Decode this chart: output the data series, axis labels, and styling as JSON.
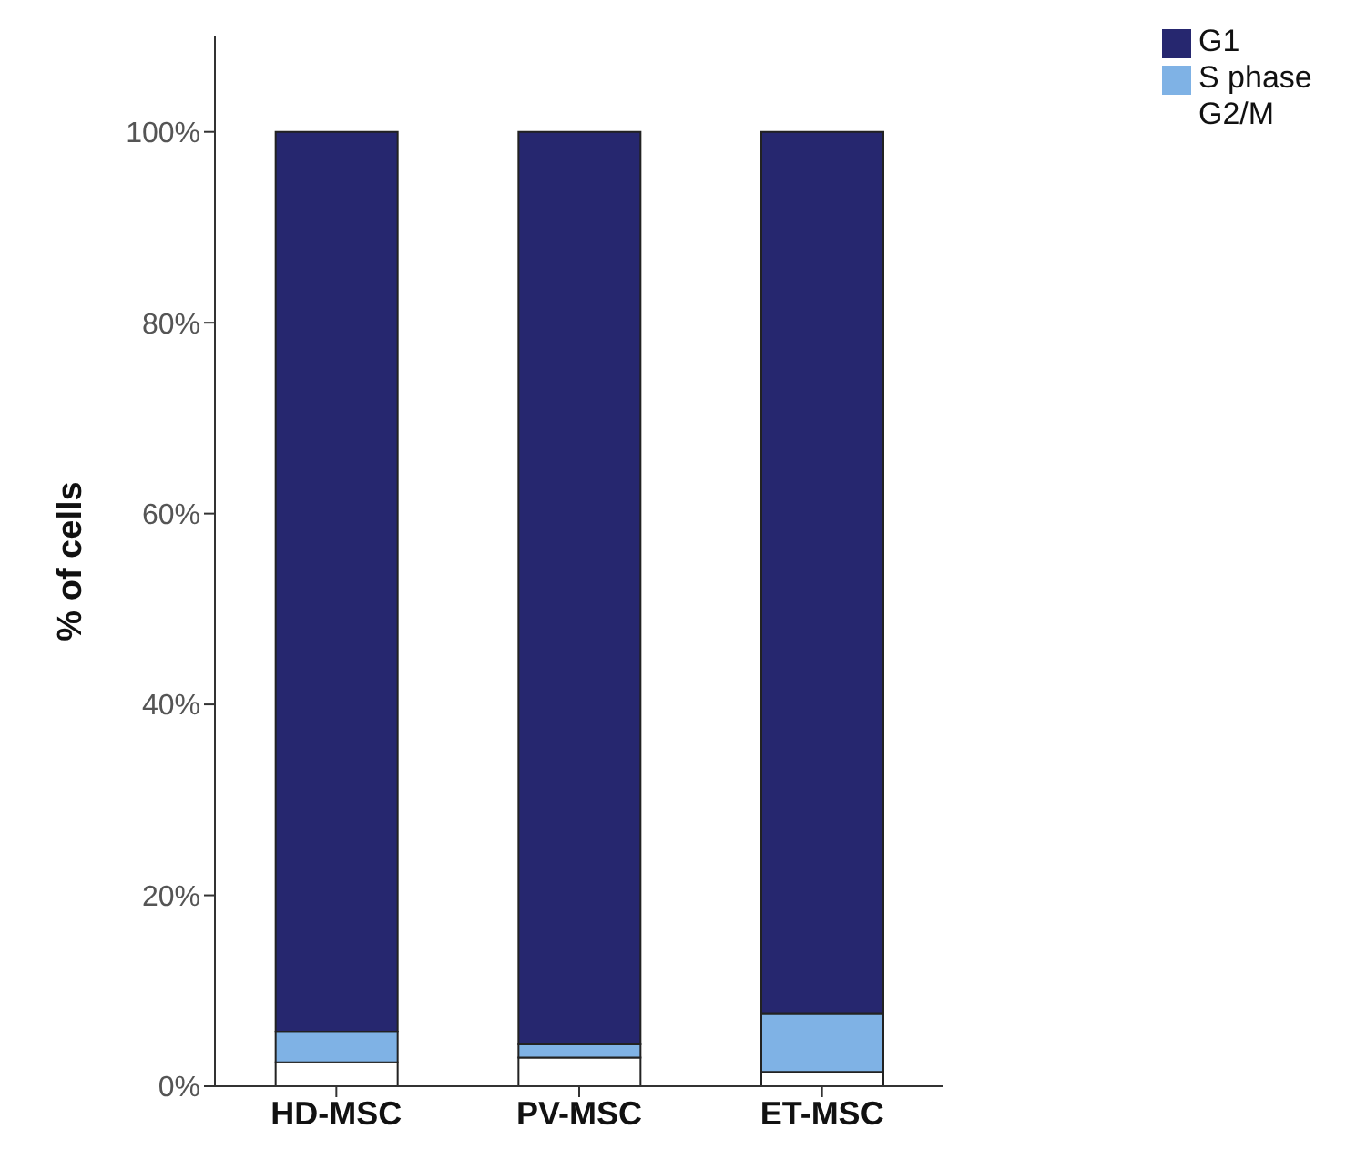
{
  "chart_data": {
    "type": "bar",
    "stacked": true,
    "ylabel": "% of cells",
    "categories": [
      "HD-MSC",
      "PV-MSC",
      "ET-MSC"
    ],
    "series": [
      {
        "name": "G2/M",
        "color": "#ffffff",
        "values": [
          2.5,
          3.0,
          1.5
        ]
      },
      {
        "name": "S phase",
        "color": "#7fb2e5",
        "values": [
          3.2,
          1.4,
          6.1
        ]
      },
      {
        "name": "G1",
        "color": "#26276f",
        "values": [
          94.3,
          95.6,
          92.4
        ]
      }
    ],
    "ylim": [
      0,
      110
    ],
    "yticks": [
      {
        "value": 0,
        "label": "0%"
      },
      {
        "value": 20,
        "label": "20%"
      },
      {
        "value": 40,
        "label": "40%"
      },
      {
        "value": 60,
        "label": "60%"
      },
      {
        "value": 80,
        "label": "80%"
      },
      {
        "value": 100,
        "label": "100%"
      }
    ],
    "grid": false,
    "legend": "top right"
  }
}
